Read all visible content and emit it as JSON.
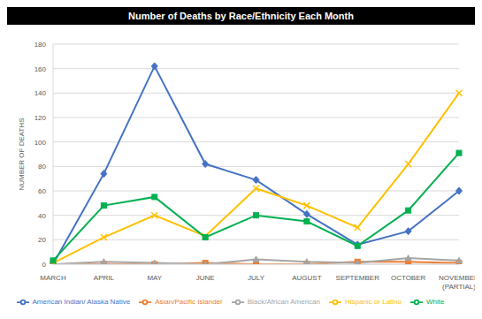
{
  "chart_data": {
    "type": "line",
    "title": "Number of Deaths by Race/Ethnicity Each Month",
    "y_label": "NUMBER OF DEATHS",
    "categories": [
      "MARCH",
      "APRIL",
      "MAY",
      "JUNE",
      "JULY",
      "AUGUST",
      "SEPTEMBER",
      "OCTOBER",
      "NOVEMBER (PARTIAL)"
    ],
    "series": [
      {
        "name": "American Indian/ Alaska Native",
        "color": "#4472c4",
        "marker": "diamond",
        "values": [
          0,
          74,
          162,
          82,
          69,
          41,
          16,
          27,
          60
        ]
      },
      {
        "name": "Asian/Pacific Islander",
        "color": "#ed7d31",
        "marker": "square",
        "values": [
          0,
          0,
          0,
          1,
          0,
          0,
          2,
          2,
          1
        ]
      },
      {
        "name": "Black/African American",
        "color": "#a5a5a5",
        "marker": "triangle",
        "values": [
          0,
          2,
          1,
          0,
          4,
          2,
          1,
          5,
          3
        ]
      },
      {
        "name": "Hispanic or Latino",
        "color": "#ffc000",
        "marker": "x",
        "values": [
          1,
          22,
          40,
          23,
          62,
          48,
          30,
          82,
          140
        ]
      },
      {
        "name": "White",
        "color": "#00b050",
        "marker": "square",
        "values": [
          3,
          48,
          55,
          22,
          40,
          35,
          15,
          44,
          91
        ]
      }
    ],
    "ylim": [
      0,
      180
    ],
    "yticks": [
      0,
      20,
      40,
      60,
      80,
      100,
      120,
      140,
      160,
      180
    ],
    "grid": true,
    "legend": "bottom"
  }
}
